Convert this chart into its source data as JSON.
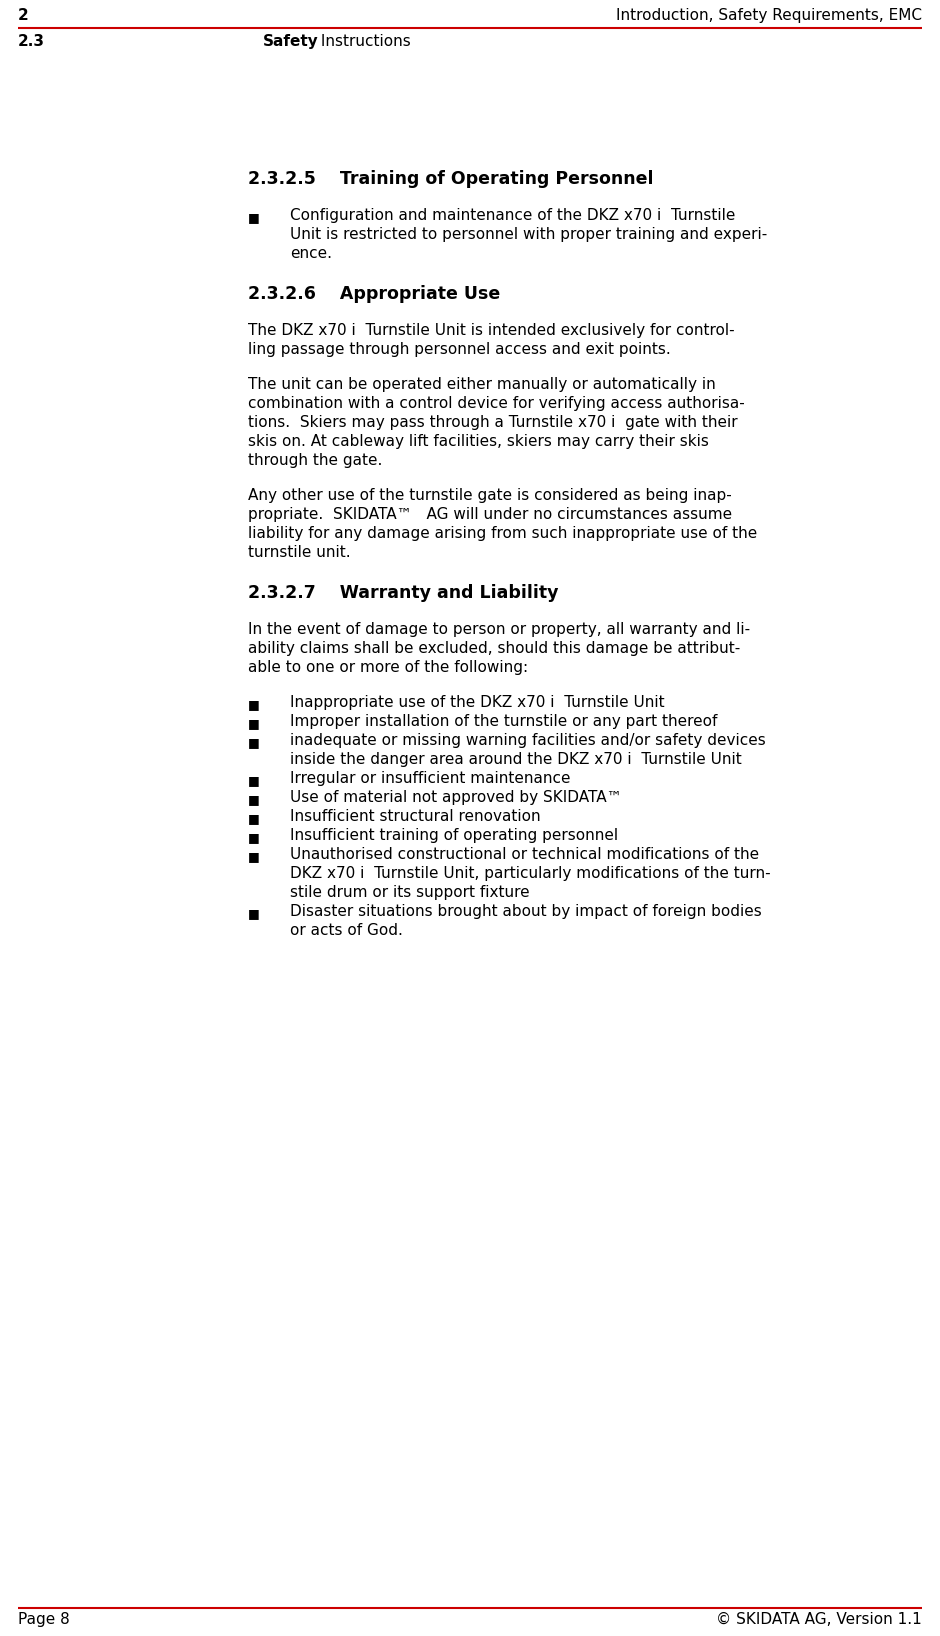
{
  "bg_color": "#ffffff",
  "header_line_color": "#cc0000",
  "footer_line_color": "#cc0000",
  "header_left_num": "2",
  "header_right": "Introduction, Safety Requirements, EMC",
  "header_left2_num": "2.3",
  "header_left2_bold": "Safety",
  "header_left2_rest": " Instructions",
  "footer_left": "Page 8",
  "footer_right": "© SKIDATA AG, Version 1.1",
  "section_title_1": "2.3.2.5    Training of Operating Personnel",
  "section_title_2": "2.3.2.6    Appropriate Use",
  "section_title_3": "2.3.2.7    Warranty and Liability",
  "bullet_1_lines": [
    "Configuration and maintenance of the DKZ x70 i  Turnstile",
    "Unit is restricted to personnel with proper training and experi-",
    "ence."
  ],
  "para_2a_lines": [
    "The DKZ x70 i  Turnstile Unit is intended exclusively for control-",
    "ling passage through personnel access and exit points."
  ],
  "para_2b_lines": [
    "The unit can be operated either manually or automatically in",
    "combination with a control device for verifying access authorisa-",
    "tions.  Skiers may pass through a Turnstile x70 i  gate with their",
    "skis on. At cableway lift facilities, skiers may carry their skis",
    "through the gate."
  ],
  "para_2c_lines": [
    "Any other use of the turnstile gate is considered as being inap-",
    "propriate.  SKIDATA™   AG will under no circumstances assume",
    "liability for any damage arising from such inappropriate use of the",
    "turnstile unit."
  ],
  "para_3a_lines": [
    "In the event of damage to person or property, all warranty and li-",
    "ability claims shall be excluded, should this damage be attribut-",
    "able to one or more of the following:"
  ],
  "bullets_3": [
    [
      "Inappropriate use of the DKZ x70 i  Turnstile Unit"
    ],
    [
      "Improper installation of the turnstile or any part thereof"
    ],
    [
      "inadequate or missing warning facilities and/or safety devices",
      "inside the danger area around the DKZ x70 i  Turnstile Unit"
    ],
    [
      "Irregular or insufficient maintenance"
    ],
    [
      "Use of material not approved by SKIDATA™"
    ],
    [
      "Insufficient structural renovation"
    ],
    [
      "Insufficient training of operating personnel"
    ],
    [
      "Unauthorised constructional or technical modifications of the",
      "DKZ x70 i  Turnstile Unit, particularly modifications of the turn-",
      "stile drum or its support fixture"
    ],
    [
      "Disaster situations brought about by impact of foreign bodies",
      "or acts of God."
    ]
  ],
  "text_color": "#000000",
  "font_size_body": 11.0,
  "font_size_header": 11.0,
  "font_size_section": 12.5,
  "font_size_bullet": 9.0
}
